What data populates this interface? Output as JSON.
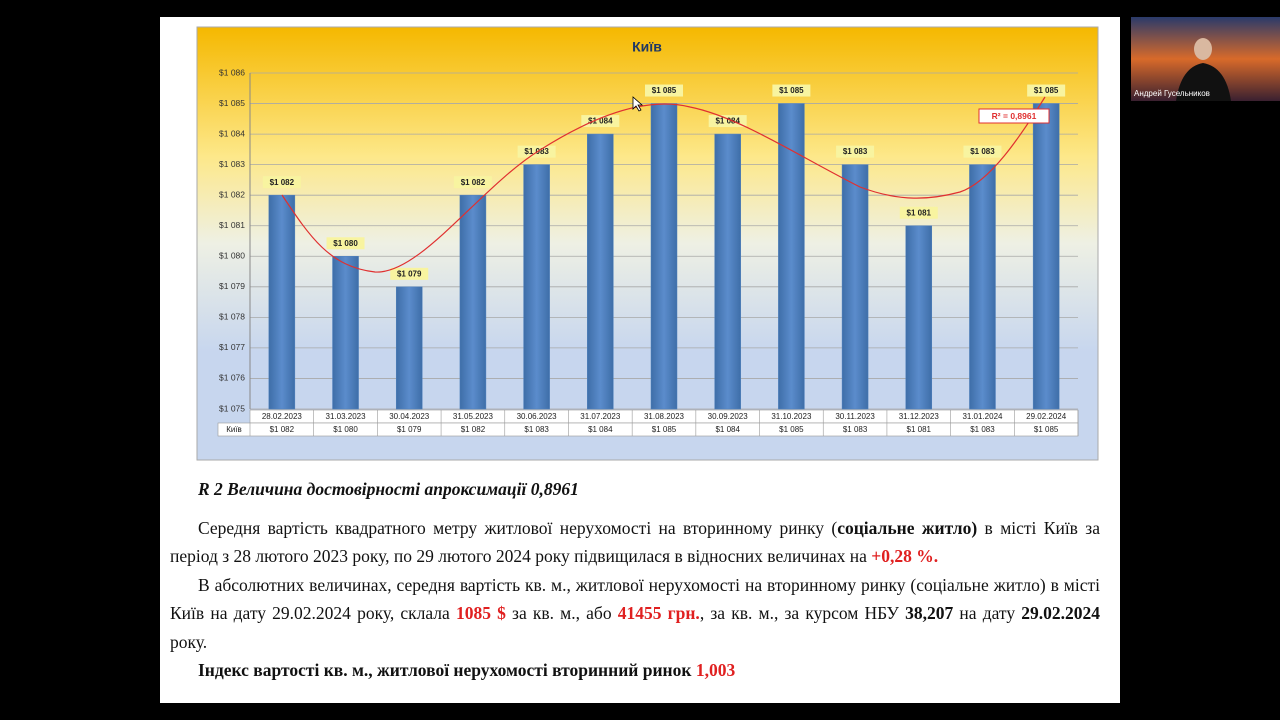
{
  "chart_data": {
    "type": "bar",
    "title": "Київ",
    "categories": [
      "28.02.2023",
      "31.03.2023",
      "30.04.2023",
      "31.05.2023",
      "30.06.2023",
      "31.07.2023",
      "31.08.2023",
      "30.09.2023",
      "31.10.2023",
      "30.11.2023",
      "31.12.2023",
      "31.01.2024",
      "29.02.2024"
    ],
    "series": [
      {
        "name": "Київ",
        "color": "#4f81bd",
        "values": [
          1082,
          1080,
          1079,
          1082,
          1083,
          1084,
          1085,
          1084,
          1085,
          1083,
          1081,
          1083,
          1085
        ],
        "value_labels": [
          "$1 082",
          "$1 080",
          "$1 079",
          "$1 082",
          "$1 083",
          "$1 084",
          "$1 085",
          "$1 084",
          "$1 085",
          "$1 083",
          "$1 081",
          "$1 083",
          "$1 085"
        ]
      }
    ],
    "ylim": [
      1075,
      1086
    ],
    "yticks": [
      {
        "value": 1075,
        "label": "$1 075"
      },
      {
        "value": 1076,
        "label": "$1 076"
      },
      {
        "value": 1077,
        "label": "$1 077"
      },
      {
        "value": 1078,
        "label": "$1 078"
      },
      {
        "value": 1079,
        "label": "$1 079"
      },
      {
        "value": 1080,
        "label": "$1 080"
      },
      {
        "value": 1081,
        "label": "$1 081"
      },
      {
        "value": 1082,
        "label": "$1 082"
      },
      {
        "value": 1083,
        "label": "$1 083"
      },
      {
        "value": 1084,
        "label": "$1 084"
      },
      {
        "value": 1085,
        "label": "$1 085"
      },
      {
        "value": 1086,
        "label": "$1 086"
      }
    ],
    "grid": true,
    "annotation": "R² = 0,8961"
  },
  "document": {
    "caption": "R 2 Величина достовірності апроксимації 0,8961",
    "paragraphs": [
      [
        "Середня вартість квадратного метру житлової нерухомості на вторинному ринку (",
        "соціальне житло)",
        " в місті Київ за період з 28 лютого 2023 року, по 29 лютого 2024 року підвищилася в відносних величинах на ",
        "+0,28 %."
      ],
      [
        "В абсолютних величинах, середня вартість кв. м., житлової нерухомості на вторинному ринку (соціальне житло) в місті Київ на дату 29.02.2024 року, склала ",
        "1085 $",
        " за кв. м., або ",
        "41455 грн.",
        ", за кв. м., за курсом НБУ ",
        "38,207",
        " на дату ",
        "29.02.2024",
        " року."
      ],
      [
        "Індекс вартості кв. м., житлової нерухомості вторинний ринок ",
        "1,003"
      ]
    ]
  },
  "participant": {
    "name": "Андрей Гусельников"
  }
}
